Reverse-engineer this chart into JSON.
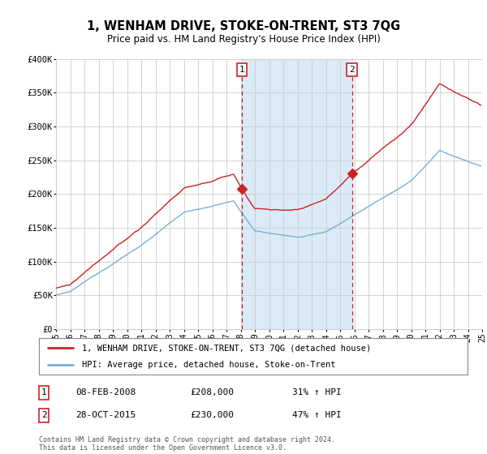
{
  "title": "1, WENHAM DRIVE, STOKE-ON-TRENT, ST3 7QG",
  "subtitle": "Price paid vs. HM Land Registry's House Price Index (HPI)",
  "ylim": [
    0,
    400000
  ],
  "yticks": [
    0,
    50000,
    100000,
    150000,
    200000,
    250000,
    300000,
    350000,
    400000
  ],
  "ytick_labels": [
    "£0",
    "£50K",
    "£100K",
    "£150K",
    "£200K",
    "£250K",
    "£300K",
    "£350K",
    "£400K"
  ],
  "sale1_date": 2008.08,
  "sale1_price": 208000,
  "sale1_label": "1",
  "sale2_date": 2015.83,
  "sale2_price": 230000,
  "sale2_label": "2",
  "red_line_color": "#cc2222",
  "blue_line_color": "#7aafd4",
  "shade_color": "#daeaf7",
  "vline_color": "#cc2222",
  "grid_color": "#cccccc",
  "legend_house": "1, WENHAM DRIVE, STOKE-ON-TRENT, ST3 7QG (detached house)",
  "legend_hpi": "HPI: Average price, detached house, Stoke-on-Trent",
  "annotation1": "08-FEB-2008",
  "annotation1_price": "£208,000",
  "annotation1_hpi": "31% ↑ HPI",
  "annotation2": "28-OCT-2015",
  "annotation2_price": "£230,000",
  "annotation2_hpi": "47% ↑ HPI",
  "footer": "Contains HM Land Registry data © Crown copyright and database right 2024.\nThis data is licensed under the Open Government Licence v3.0.",
  "background_color": "#ffffff"
}
